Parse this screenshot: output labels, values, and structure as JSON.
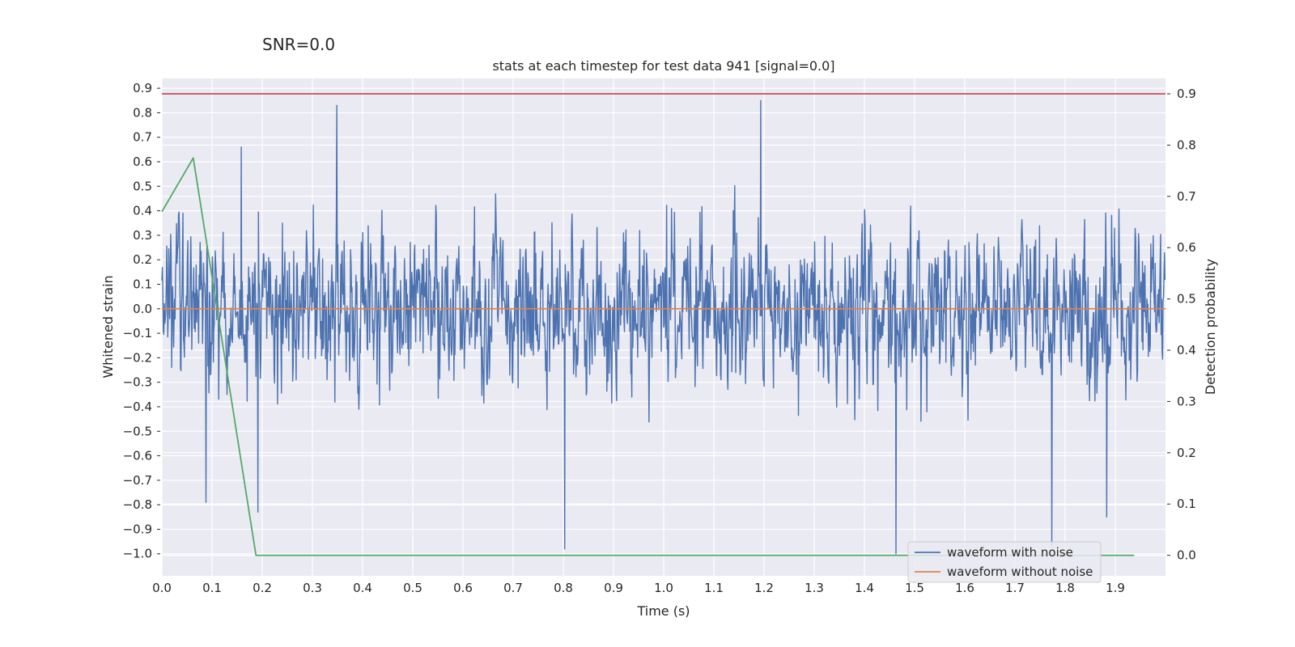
{
  "chart_data": {
    "type": "line",
    "suptitle": "SNR=0.0",
    "title": "stats at each timestep for test data 941 [signal=0.0]",
    "xlabel": "Time (s)",
    "ylabel_left": "Whitened strain",
    "ylabel_right": "Detection probability",
    "xlim": [
      0.0,
      2.0
    ],
    "ylim_left": [
      -1.09,
      0.94
    ],
    "ylim_right": [
      -0.04,
      0.93
    ],
    "x_ticks": [
      "0.0",
      "0.1",
      "0.2",
      "0.3",
      "0.4",
      "0.5",
      "0.6",
      "0.7",
      "0.8",
      "0.9",
      "1.0",
      "1.1",
      "1.2",
      "1.3",
      "1.4",
      "1.5",
      "1.6",
      "1.7",
      "1.8",
      "1.9"
    ],
    "y_ticks_left": [
      "0.9",
      "0.8",
      "0.7",
      "0.6",
      "0.5",
      "0.4",
      "0.3",
      "0.2",
      "0.1",
      "0.0",
      "−0.1",
      "−0.2",
      "−0.3",
      "−0.4",
      "−0.5",
      "−0.6",
      "−0.7",
      "−0.8",
      "−0.9",
      "−1.0"
    ],
    "y_ticks_right": [
      "0.9",
      "0.8",
      "0.7",
      "0.6",
      "0.5",
      "0.4",
      "0.3",
      "0.2",
      "0.1",
      "0.0"
    ],
    "grid": true,
    "legend_position": "lower-right",
    "series": [
      {
        "name": "waveform with noise",
        "axis": "left",
        "color": "#4c72b0",
        "kind": "noise",
        "seed": 941,
        "n_points": 2048,
        "amplitude_range": [
          -1.0,
          0.85
        ],
        "notable_peaks": [
          {
            "x": 0.349,
            "y": 0.83
          },
          {
            "x": 1.193,
            "y": 0.85
          },
          {
            "x": 1.463,
            "y": -1.0
          },
          {
            "x": 1.773,
            "y": -0.97
          },
          {
            "x": 0.803,
            "y": -0.98
          },
          {
            "x": 0.088,
            "y": -0.79
          },
          {
            "x": 0.191,
            "y": -0.83
          },
          {
            "x": 1.883,
            "y": -0.85
          },
          {
            "x": 0.158,
            "y": 0.66
          }
        ]
      },
      {
        "name": "waveform without noise",
        "axis": "left",
        "color": "#dd8452",
        "x": [
          0.0,
          2.0
        ],
        "y": [
          0.0,
          0.0
        ]
      },
      {
        "name": "",
        "axis": "right",
        "color": "#55a868",
        "x": [
          0.0,
          0.0625,
          0.1875,
          0.25,
          1.9375
        ],
        "y": [
          0.67,
          0.775,
          0.0,
          0.0,
          0.0
        ]
      },
      {
        "name": "",
        "axis": "right",
        "color": "#c44e52",
        "x": [
          0.0,
          2.0
        ],
        "y": [
          0.9,
          0.9
        ]
      }
    ]
  }
}
